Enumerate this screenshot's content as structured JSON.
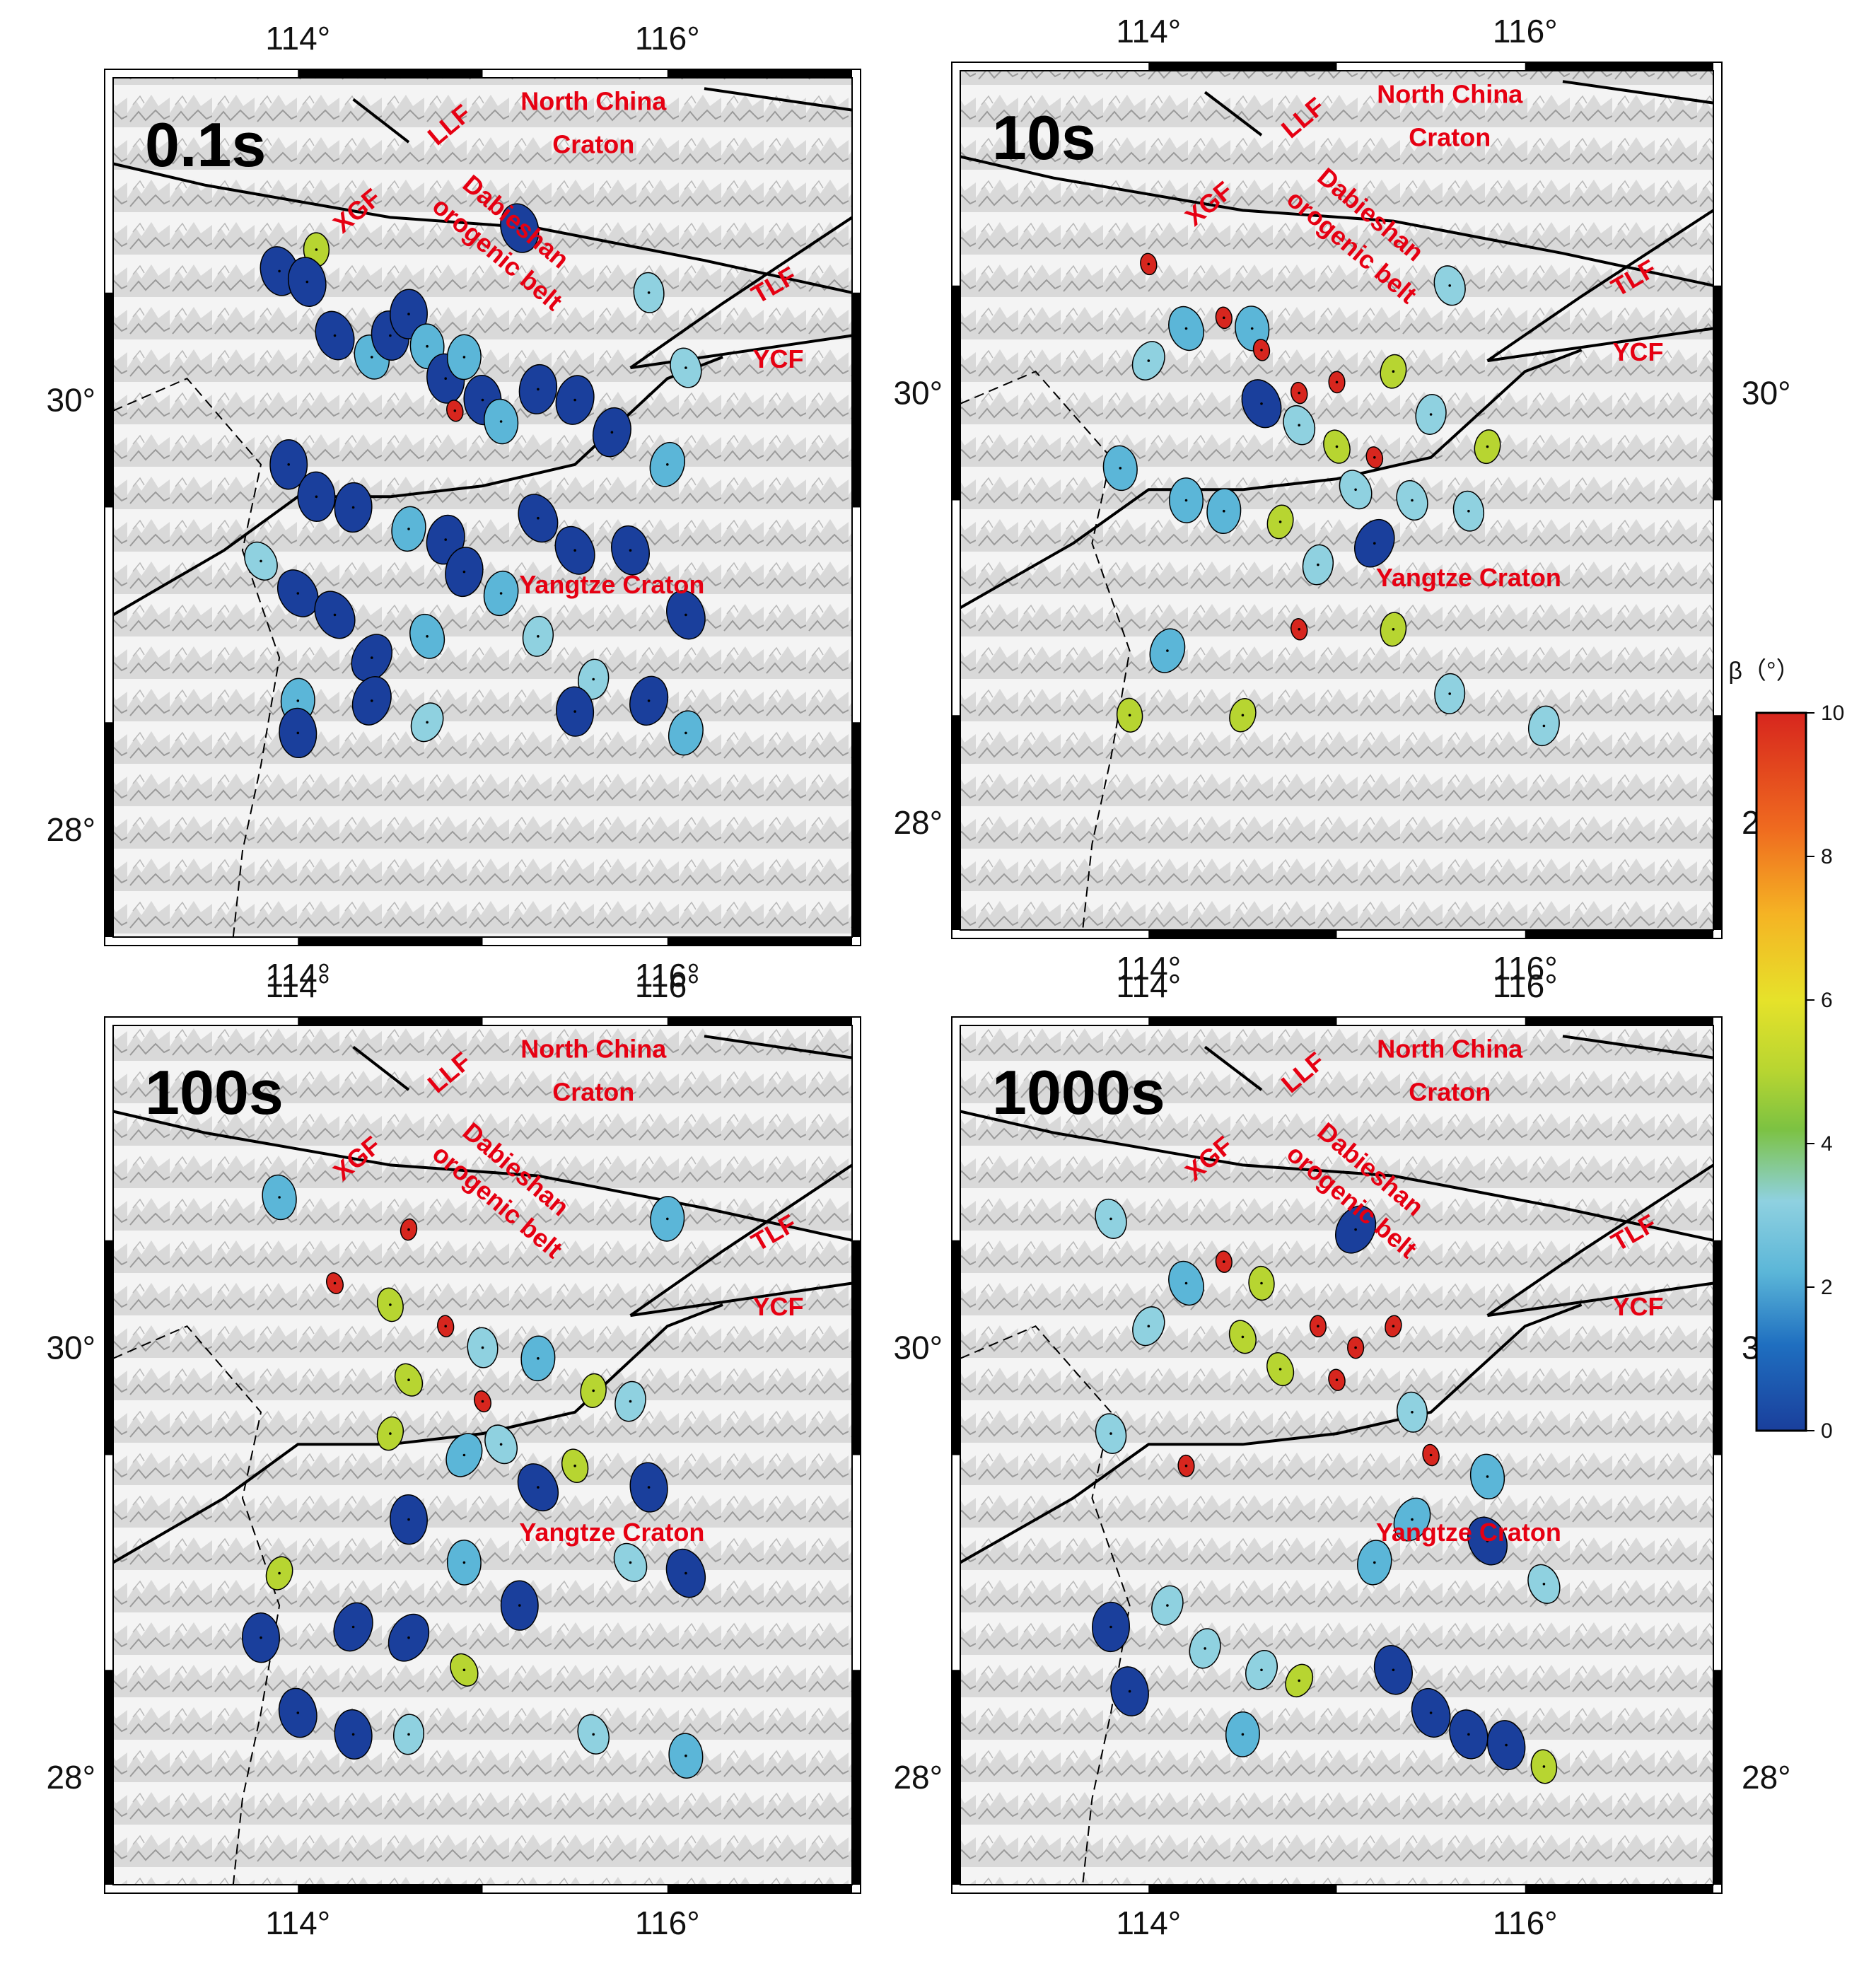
{
  "axes": {
    "x_ticks": [
      {
        "value": 114,
        "label": "114°"
      },
      {
        "value": 116,
        "label": "116°"
      }
    ],
    "y_ticks": [
      {
        "value": 30,
        "label": "30°"
      },
      {
        "value": 28,
        "label": "28°"
      }
    ],
    "lon_range": [
      113,
      117
    ],
    "lat_range": [
      27.5,
      31.5
    ]
  },
  "labels": {
    "LLF": "LLF",
    "NCC1": "North China",
    "NCC2": "Craton",
    "XGF": "XGF",
    "DB1": "Dabieshan",
    "DB2": "orogenic belt",
    "TLF": "TLF",
    "YCF": "YCF",
    "YZ": "Yangtze Craton"
  },
  "colorbar": {
    "title": "β（°）",
    "ticks": [
      "10",
      "8",
      "6",
      "4",
      "2",
      "0"
    ],
    "colors": [
      "#1a3f9c",
      "#1f6fc0",
      "#5bb6d8",
      "#8fd1e0",
      "#7cc242",
      "#b7d531",
      "#e6e22a",
      "#f5b324",
      "#ef6a1f",
      "#d7261e"
    ]
  },
  "panels": [
    {
      "id": "p1",
      "label": "0.1s"
    },
    {
      "id": "p2",
      "label": "10s"
    },
    {
      "id": "p3",
      "label": "100s"
    },
    {
      "id": "p4",
      "label": "1000s"
    }
  ],
  "chart_data": {
    "type": "scatter",
    "x_ticks": [
      "114°",
      "116°"
    ],
    "y_ticks": [
      "30°",
      "28°"
    ],
    "colorbar": {
      "label": "β（°）",
      "range": [
        0,
        10
      ],
      "ticks": [
        0,
        2,
        4,
        6,
        8,
        10
      ]
    },
    "panels": [
      {
        "label": "0.1s",
        "points": [
          {
            "lon": 114.1,
            "lat": 30.7,
            "beta": 5.5
          },
          {
            "lon": 113.9,
            "lat": 30.6,
            "beta": 0.5
          },
          {
            "lon": 114.05,
            "lat": 30.55,
            "beta": 0.5
          },
          {
            "lon": 115.2,
            "lat": 30.8,
            "beta": 0.5
          },
          {
            "lon": 115.9,
            "lat": 30.5,
            "beta": 3.5
          },
          {
            "lon": 116.1,
            "lat": 30.15,
            "beta": 3.5
          },
          {
            "lon": 114.2,
            "lat": 30.3,
            "beta": 0.5
          },
          {
            "lon": 114.4,
            "lat": 30.2,
            "beta": 2.0
          },
          {
            "lon": 114.5,
            "lat": 30.3,
            "beta": 0.5
          },
          {
            "lon": 114.6,
            "lat": 30.4,
            "beta": 0.5
          },
          {
            "lon": 114.7,
            "lat": 30.25,
            "beta": 2.0
          },
          {
            "lon": 114.8,
            "lat": 30.1,
            "beta": 0.5
          },
          {
            "lon": 114.9,
            "lat": 30.2,
            "beta": 2.0
          },
          {
            "lon": 115.0,
            "lat": 30.0,
            "beta": 0.5
          },
          {
            "lon": 115.1,
            "lat": 29.9,
            "beta": 2.0
          },
          {
            "lon": 115.3,
            "lat": 30.05,
            "beta": 0.5
          },
          {
            "lon": 115.5,
            "lat": 30.0,
            "beta": 0.5
          },
          {
            "lon": 115.7,
            "lat": 29.85,
            "beta": 0.5
          },
          {
            "lon": 116.0,
            "lat": 29.7,
            "beta": 2.0
          },
          {
            "lon": 113.95,
            "lat": 29.7,
            "beta": 0.5
          },
          {
            "lon": 114.1,
            "lat": 29.55,
            "beta": 0.5
          },
          {
            "lon": 114.3,
            "lat": 29.5,
            "beta": 0.5
          },
          {
            "lon": 114.6,
            "lat": 29.4,
            "beta": 2.0
          },
          {
            "lon": 114.8,
            "lat": 29.35,
            "beta": 0.5
          },
          {
            "lon": 115.3,
            "lat": 29.45,
            "beta": 0.5
          },
          {
            "lon": 115.5,
            "lat": 29.3,
            "beta": 0.5
          },
          {
            "lon": 115.8,
            "lat": 29.3,
            "beta": 0.5
          },
          {
            "lon": 113.8,
            "lat": 29.25,
            "beta": 3.5
          },
          {
            "lon": 114.0,
            "lat": 29.1,
            "beta": 0.5
          },
          {
            "lon": 114.2,
            "lat": 29.0,
            "beta": 0.5
          },
          {
            "lon": 114.4,
            "lat": 28.8,
            "beta": 0.5
          },
          {
            "lon": 114.7,
            "lat": 28.9,
            "beta": 2.0
          },
          {
            "lon": 114.9,
            "lat": 29.2,
            "beta": 0.5
          },
          {
            "lon": 115.1,
            "lat": 29.1,
            "beta": 2.0
          },
          {
            "lon": 115.3,
            "lat": 28.9,
            "beta": 3.5
          },
          {
            "lon": 115.6,
            "lat": 28.7,
            "beta": 3.5
          },
          {
            "lon": 115.9,
            "lat": 28.6,
            "beta": 0.5
          },
          {
            "lon": 116.1,
            "lat": 29.0,
            "beta": 0.5
          },
          {
            "lon": 116.1,
            "lat": 28.45,
            "beta": 2.0
          },
          {
            "lon": 114.0,
            "lat": 28.6,
            "beta": 2.0
          },
          {
            "lon": 114.0,
            "lat": 28.45,
            "beta": 0.5
          },
          {
            "lon": 114.4,
            "lat": 28.6,
            "beta": 0.5
          },
          {
            "lon": 114.7,
            "lat": 28.5,
            "beta": 3.5
          },
          {
            "lon": 115.5,
            "lat": 28.55,
            "beta": 0.5
          },
          {
            "lon": 114.85,
            "lat": 29.95,
            "beta": 9.5
          }
        ]
      },
      {
        "label": "10s",
        "points": [
          {
            "lon": 114.0,
            "lat": 30.6,
            "beta": 9.5
          },
          {
            "lon": 114.4,
            "lat": 30.35,
            "beta": 9.5
          },
          {
            "lon": 114.55,
            "lat": 30.3,
            "beta": 2.0
          },
          {
            "lon": 114.2,
            "lat": 30.3,
            "beta": 2.0
          },
          {
            "lon": 114.0,
            "lat": 30.15,
            "beta": 3.5
          },
          {
            "lon": 114.8,
            "lat": 30.0,
            "beta": 9.5
          },
          {
            "lon": 115.0,
            "lat": 30.05,
            "beta": 9.5
          },
          {
            "lon": 115.3,
            "lat": 30.1,
            "beta": 5.5
          },
          {
            "lon": 114.6,
            "lat": 29.95,
            "beta": 0.5
          },
          {
            "lon": 114.8,
            "lat": 29.85,
            "beta": 3.5
          },
          {
            "lon": 115.0,
            "lat": 29.75,
            "beta": 5.5
          },
          {
            "lon": 115.2,
            "lat": 29.7,
            "beta": 9.5
          },
          {
            "lon": 115.5,
            "lat": 29.9,
            "beta": 3.5
          },
          {
            "lon": 115.8,
            "lat": 29.75,
            "beta": 5.5
          },
          {
            "lon": 113.85,
            "lat": 29.65,
            "beta": 2.0
          },
          {
            "lon": 114.2,
            "lat": 29.5,
            "beta": 2.0
          },
          {
            "lon": 114.4,
            "lat": 29.45,
            "beta": 2.0
          },
          {
            "lon": 114.7,
            "lat": 29.4,
            "beta": 5.5
          },
          {
            "lon": 115.1,
            "lat": 29.55,
            "beta": 3.5
          },
          {
            "lon": 115.4,
            "lat": 29.5,
            "beta": 3.5
          },
          {
            "lon": 115.7,
            "lat": 29.45,
            "beta": 3.5
          },
          {
            "lon": 114.9,
            "lat": 29.2,
            "beta": 3.5
          },
          {
            "lon": 115.2,
            "lat": 29.3,
            "beta": 0.5
          },
          {
            "lon": 114.8,
            "lat": 28.9,
            "beta": 9.5
          },
          {
            "lon": 115.3,
            "lat": 28.9,
            "beta": 5.5
          },
          {
            "lon": 114.1,
            "lat": 28.8,
            "beta": 2.0
          },
          {
            "lon": 113.9,
            "lat": 28.5,
            "beta": 5.5
          },
          {
            "lon": 114.5,
            "lat": 28.5,
            "beta": 5.5
          },
          {
            "lon": 115.6,
            "lat": 28.6,
            "beta": 3.5
          },
          {
            "lon": 116.1,
            "lat": 28.45,
            "beta": 3.5
          },
          {
            "lon": 115.6,
            "lat": 30.5,
            "beta": 3.5
          },
          {
            "lon": 114.6,
            "lat": 30.2,
            "beta": 9.5
          }
        ]
      },
      {
        "label": "100s",
        "points": [
          {
            "lon": 113.9,
            "lat": 30.7,
            "beta": 2.0
          },
          {
            "lon": 114.6,
            "lat": 30.55,
            "beta": 9.5
          },
          {
            "lon": 114.2,
            "lat": 30.3,
            "beta": 9.5
          },
          {
            "lon": 114.5,
            "lat": 30.2,
            "beta": 5.5
          },
          {
            "lon": 114.8,
            "lat": 30.1,
            "beta": 9.5
          },
          {
            "lon": 115.0,
            "lat": 30.0,
            "beta": 3.5
          },
          {
            "lon": 115.3,
            "lat": 29.95,
            "beta": 2.0
          },
          {
            "lon": 114.6,
            "lat": 29.85,
            "beta": 5.5
          },
          {
            "lon": 115.0,
            "lat": 29.75,
            "beta": 9.5
          },
          {
            "lon": 115.6,
            "lat": 29.8,
            "beta": 5.5
          },
          {
            "lon": 115.8,
            "lat": 29.75,
            "beta": 3.5
          },
          {
            "lon": 114.5,
            "lat": 29.6,
            "beta": 5.5
          },
          {
            "lon": 114.9,
            "lat": 29.5,
            "beta": 2.0
          },
          {
            "lon": 115.1,
            "lat": 29.55,
            "beta": 3.5
          },
          {
            "lon": 115.3,
            "lat": 29.35,
            "beta": 0.5
          },
          {
            "lon": 115.5,
            "lat": 29.45,
            "beta": 5.5
          },
          {
            "lon": 115.9,
            "lat": 29.35,
            "beta": 0.5
          },
          {
            "lon": 114.6,
            "lat": 29.2,
            "beta": 0.5
          },
          {
            "lon": 114.9,
            "lat": 29.0,
            "beta": 2.0
          },
          {
            "lon": 115.2,
            "lat": 28.8,
            "beta": 0.5
          },
          {
            "lon": 115.8,
            "lat": 29.0,
            "beta": 3.5
          },
          {
            "lon": 116.1,
            "lat": 28.95,
            "beta": 0.5
          },
          {
            "lon": 113.9,
            "lat": 28.95,
            "beta": 5.5
          },
          {
            "lon": 113.8,
            "lat": 28.65,
            "beta": 0.5
          },
          {
            "lon": 114.3,
            "lat": 28.7,
            "beta": 0.5
          },
          {
            "lon": 114.6,
            "lat": 28.65,
            "beta": 0.5
          },
          {
            "lon": 114.9,
            "lat": 28.5,
            "beta": 5.5
          },
          {
            "lon": 114.0,
            "lat": 28.3,
            "beta": 0.5
          },
          {
            "lon": 114.3,
            "lat": 28.2,
            "beta": 0.5
          },
          {
            "lon": 114.6,
            "lat": 28.2,
            "beta": 3.5
          },
          {
            "lon": 115.6,
            "lat": 28.2,
            "beta": 3.5
          },
          {
            "lon": 116.1,
            "lat": 28.1,
            "beta": 2.0
          },
          {
            "lon": 116.0,
            "lat": 30.6,
            "beta": 2.0
          }
        ]
      },
      {
        "label": "1000s",
        "points": [
          {
            "lon": 113.8,
            "lat": 30.6,
            "beta": 3.5
          },
          {
            "lon": 114.4,
            "lat": 30.4,
            "beta": 9.5
          },
          {
            "lon": 114.6,
            "lat": 30.3,
            "beta": 5.5
          },
          {
            "lon": 114.2,
            "lat": 30.3,
            "beta": 2.0
          },
          {
            "lon": 114.0,
            "lat": 30.1,
            "beta": 3.5
          },
          {
            "lon": 114.5,
            "lat": 30.05,
            "beta": 5.5
          },
          {
            "lon": 114.9,
            "lat": 30.1,
            "beta": 9.5
          },
          {
            "lon": 115.1,
            "lat": 30.0,
            "beta": 9.5
          },
          {
            "lon": 115.3,
            "lat": 30.1,
            "beta": 9.5
          },
          {
            "lon": 114.7,
            "lat": 29.9,
            "beta": 5.5
          },
          {
            "lon": 115.0,
            "lat": 29.85,
            "beta": 9.5
          },
          {
            "lon": 115.4,
            "lat": 29.7,
            "beta": 3.5
          },
          {
            "lon": 113.8,
            "lat": 29.6,
            "beta": 3.5
          },
          {
            "lon": 114.2,
            "lat": 29.45,
            "beta": 9.5
          },
          {
            "lon": 115.5,
            "lat": 29.5,
            "beta": 9.5
          },
          {
            "lon": 115.8,
            "lat": 29.4,
            "beta": 2.0
          },
          {
            "lon": 115.4,
            "lat": 29.2,
            "beta": 2.0
          },
          {
            "lon": 115.2,
            "lat": 29.0,
            "beta": 2.0
          },
          {
            "lon": 115.8,
            "lat": 29.1,
            "beta": 0.5
          },
          {
            "lon": 116.1,
            "lat": 28.9,
            "beta": 3.5
          },
          {
            "lon": 114.1,
            "lat": 28.8,
            "beta": 3.5
          },
          {
            "lon": 113.8,
            "lat": 28.7,
            "beta": 0.5
          },
          {
            "lon": 114.3,
            "lat": 28.6,
            "beta": 3.5
          },
          {
            "lon": 114.6,
            "lat": 28.5,
            "beta": 3.5
          },
          {
            "lon": 114.8,
            "lat": 28.45,
            "beta": 5.5
          },
          {
            "lon": 115.3,
            "lat": 28.5,
            "beta": 0.5
          },
          {
            "lon": 115.5,
            "lat": 28.3,
            "beta": 0.5
          },
          {
            "lon": 115.7,
            "lat": 28.2,
            "beta": 0.5
          },
          {
            "lon": 113.9,
            "lat": 28.4,
            "beta": 0.5
          },
          {
            "lon": 114.5,
            "lat": 28.2,
            "beta": 2.0
          },
          {
            "lon": 116.1,
            "lat": 28.05,
            "beta": 5.5
          },
          {
            "lon": 115.9,
            "lat": 28.15,
            "beta": 0.5
          },
          {
            "lon": 115.1,
            "lat": 30.55,
            "beta": 0.5
          }
        ]
      }
    ]
  }
}
